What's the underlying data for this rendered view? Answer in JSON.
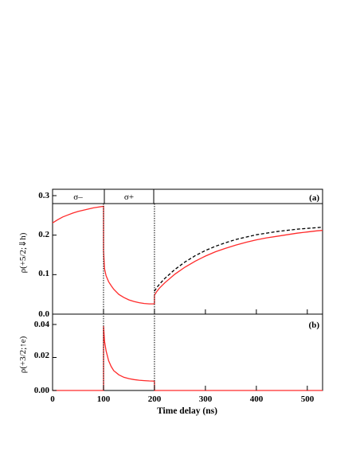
{
  "chart_data": [
    {
      "type": "line",
      "panel_label": "(a)",
      "ylabel": "ρ(+5/2;⇓h)",
      "ylim": [
        0,
        0.3
      ],
      "xlim": [
        0,
        530
      ],
      "yticks": [
        "0.0",
        "0.1",
        "0.2",
        "0.3"
      ],
      "pulse_regions": [
        {
          "label": "σ–",
          "from": 0,
          "to": 100
        },
        {
          "label": "σ+",
          "from": 100,
          "to": 200
        }
      ],
      "series": [
        {
          "style": "solid",
          "color": "#ff2a2a",
          "x": [
            0,
            10,
            20,
            30,
            40,
            50,
            60,
            70,
            80,
            90,
            100,
            100,
            102,
            105,
            110,
            115,
            120,
            130,
            140,
            150,
            160,
            170,
            180,
            190,
            200,
            200,
            205,
            210,
            220,
            240,
            260,
            280,
            300,
            320,
            340,
            360,
            380,
            400,
            420,
            440,
            460,
            480,
            500,
            520,
            530
          ],
          "y": [
            0.231,
            0.239,
            0.246,
            0.251,
            0.256,
            0.26,
            0.263,
            0.266,
            0.269,
            0.271,
            0.273,
            0.16,
            0.115,
            0.097,
            0.082,
            0.072,
            0.063,
            0.05,
            0.042,
            0.036,
            0.032,
            0.029,
            0.027,
            0.026,
            0.026,
            0.048,
            0.058,
            0.066,
            0.079,
            0.101,
            0.119,
            0.134,
            0.147,
            0.158,
            0.167,
            0.175,
            0.182,
            0.188,
            0.193,
            0.197,
            0.201,
            0.205,
            0.208,
            0.211,
            0.212
          ]
        },
        {
          "style": "dashed",
          "color": "#000000",
          "x": [
            200,
            205,
            210,
            220,
            240,
            260,
            280,
            300,
            320,
            340,
            360,
            380,
            400,
            420,
            440,
            460,
            480,
            500,
            520,
            530
          ],
          "y": [
            0.058,
            0.068,
            0.076,
            0.09,
            0.113,
            0.132,
            0.148,
            0.161,
            0.172,
            0.181,
            0.189,
            0.195,
            0.201,
            0.205,
            0.209,
            0.212,
            0.215,
            0.217,
            0.219,
            0.22
          ]
        }
      ]
    },
    {
      "type": "line",
      "panel_label": "(b)",
      "ylabel": "ρ(+3/2;↑e)",
      "ylim": [
        0,
        0.042
      ],
      "xlim": [
        0,
        530
      ],
      "yticks": [
        "0.00",
        "0.02",
        "0.04"
      ],
      "xticks": [
        "0",
        "100",
        "200",
        "300",
        "400",
        "500"
      ],
      "xlabel": "Time delay (ns)",
      "series": [
        {
          "style": "solid",
          "color": "#ff2a2a",
          "x": [
            0,
            100,
            100,
            102,
            105,
            110,
            115,
            120,
            130,
            140,
            150,
            160,
            170,
            180,
            190,
            200,
            200,
            530
          ],
          "y": [
            0.0,
            0.0,
            0.039,
            0.03,
            0.024,
            0.018,
            0.0145,
            0.012,
            0.0095,
            0.008,
            0.0072,
            0.0066,
            0.0062,
            0.006,
            0.0058,
            0.0057,
            0.0,
            0.0
          ]
        }
      ]
    }
  ]
}
